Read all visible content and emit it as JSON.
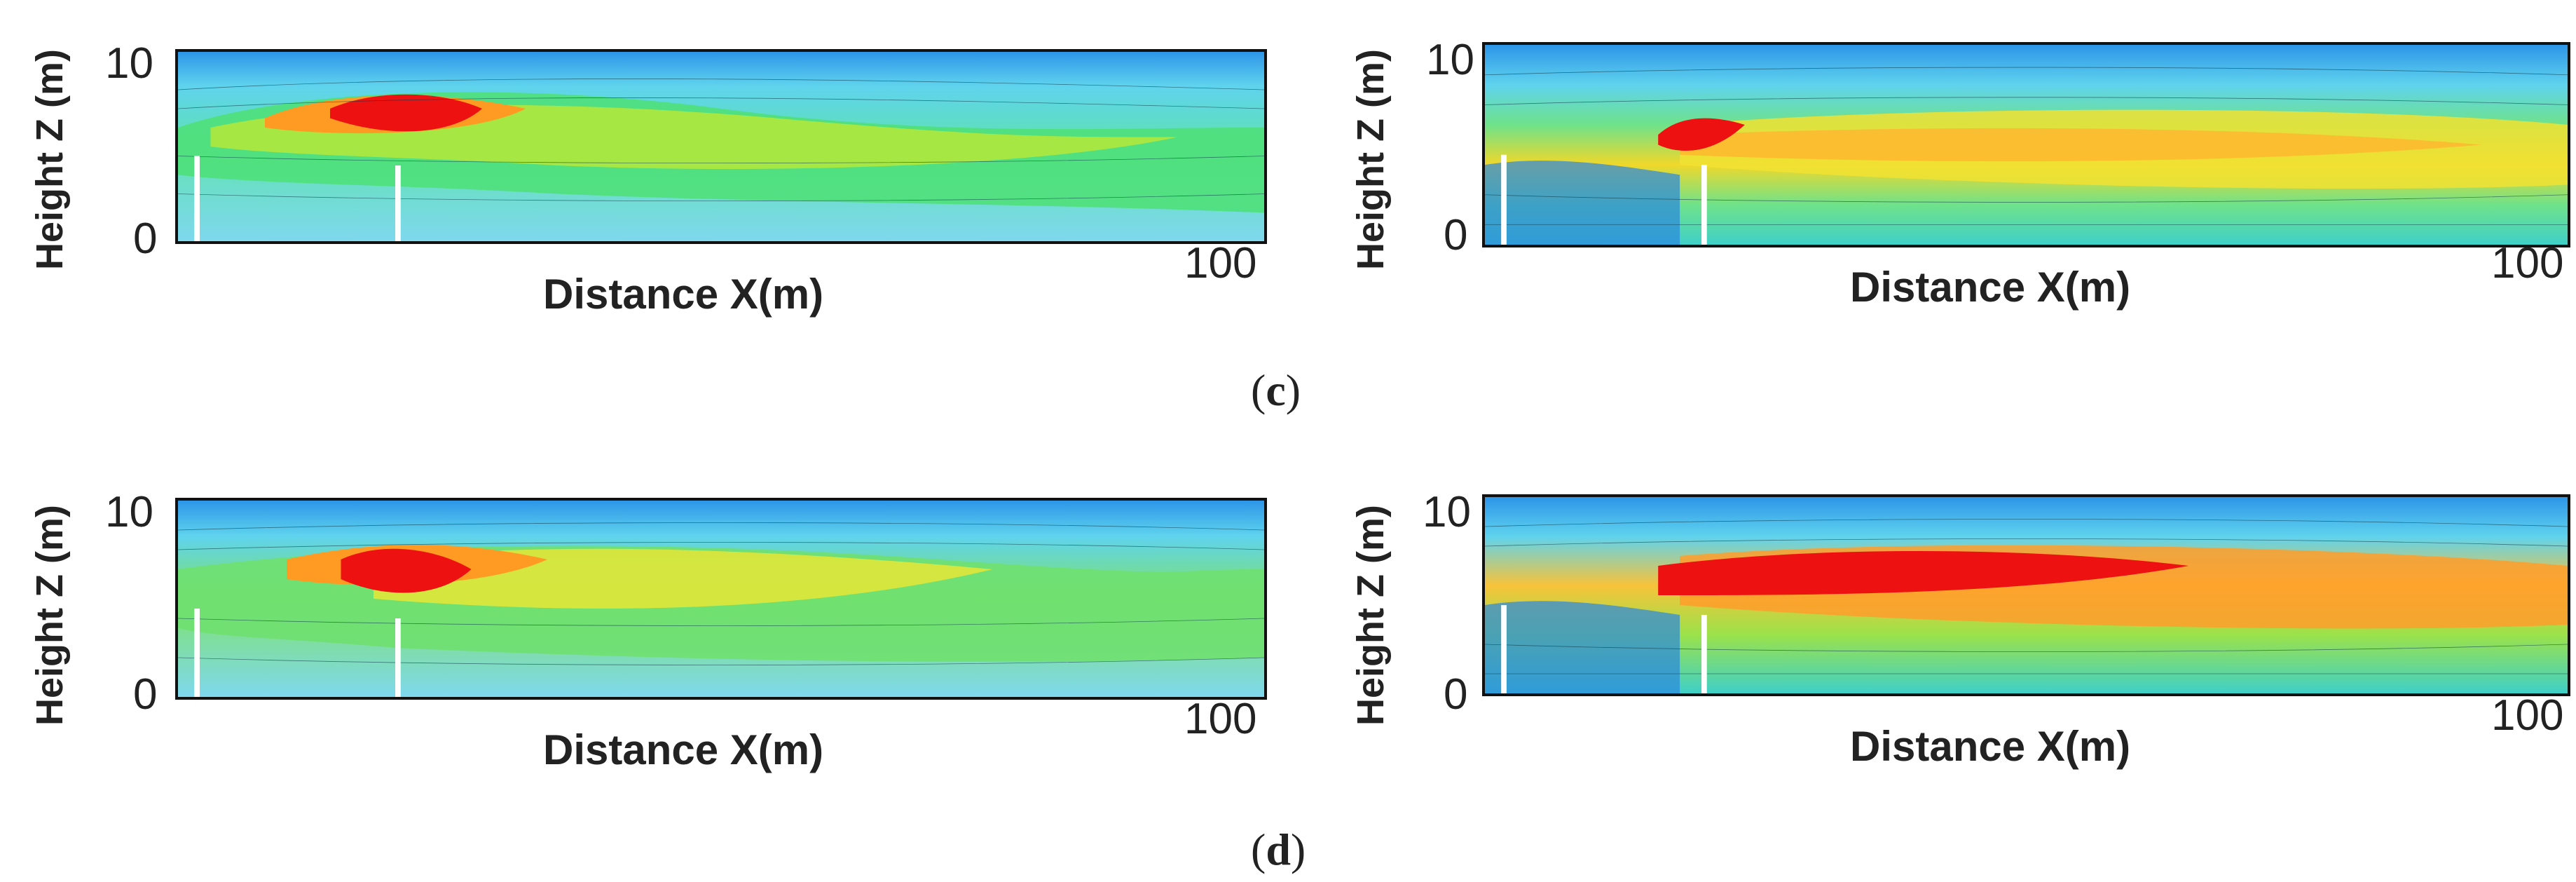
{
  "captions": {
    "c": "c",
    "d": "d"
  },
  "panels": [
    {
      "id": "c-left",
      "ylabel": "Height Z (m)",
      "xlabel": "Distance X(m)",
      "ytick_top": "10",
      "ytick_bottom": "0",
      "xtick_right": "100"
    },
    {
      "id": "c-right",
      "ylabel": "Height Z (m)",
      "xlabel": "Distance X(m)",
      "ytick_top": "10",
      "ytick_bottom": "0",
      "xtick_right": "100"
    },
    {
      "id": "d-left",
      "ylabel": "Height Z (m)",
      "xlabel": "Distance X(m)",
      "ytick_top": "10",
      "ytick_bottom": "0",
      "xtick_right": "100"
    },
    {
      "id": "d-right",
      "ylabel": "Height Z (m)",
      "xlabel": "Distance X(m)",
      "ytick_top": "10",
      "ytick_bottom": "0",
      "xtick_right": "100"
    }
  ],
  "colors": {
    "cold": "#1f7fe0",
    "cool": "#3fd0e8",
    "mid": "#3ee08a",
    "warm": "#c8e93a",
    "hot": "#ff9b22",
    "peak": "#ee1111",
    "barrier": "#ffffff"
  }
}
